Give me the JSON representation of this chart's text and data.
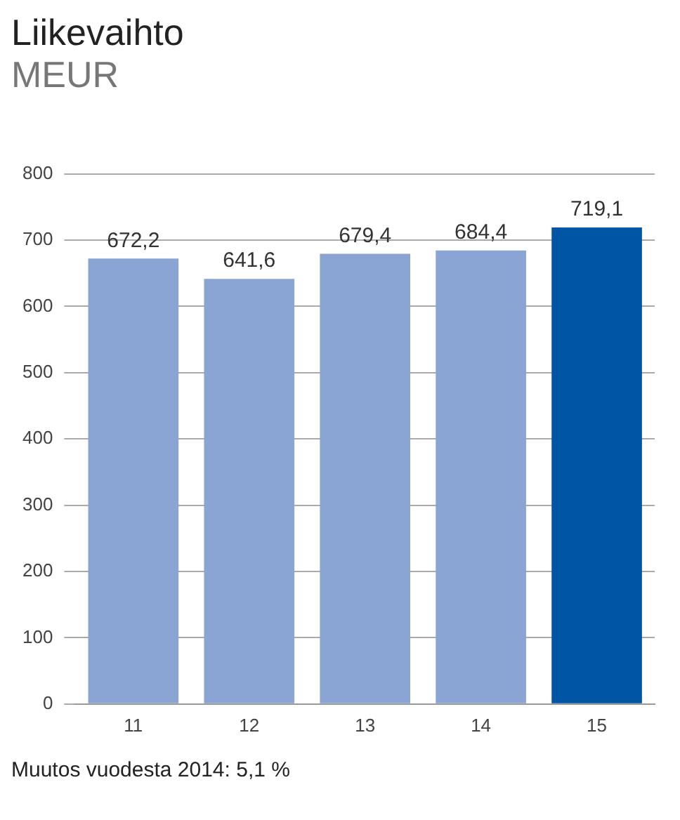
{
  "chart_data": {
    "type": "bar",
    "title": "Liikevaihto",
    "subtitle": "MEUR",
    "categories": [
      "11",
      "12",
      "13",
      "14",
      "15"
    ],
    "values": [
      672.2,
      641.6,
      679.4,
      684.4,
      719.1
    ],
    "value_labels": [
      "672,2",
      "641,6",
      "679,4",
      "684,4",
      "719,1"
    ],
    "colors": [
      "#8aa4d4",
      "#8aa4d4",
      "#8aa4d4",
      "#8aa4d4",
      "#0055a5"
    ],
    "ylim": [
      0,
      800
    ],
    "yticks": [
      0,
      100,
      200,
      300,
      400,
      500,
      600,
      700,
      800
    ],
    "grid": "y",
    "legend": false,
    "annotations": [
      "Muutos vuodesta 2014: 5,1 %"
    ]
  }
}
